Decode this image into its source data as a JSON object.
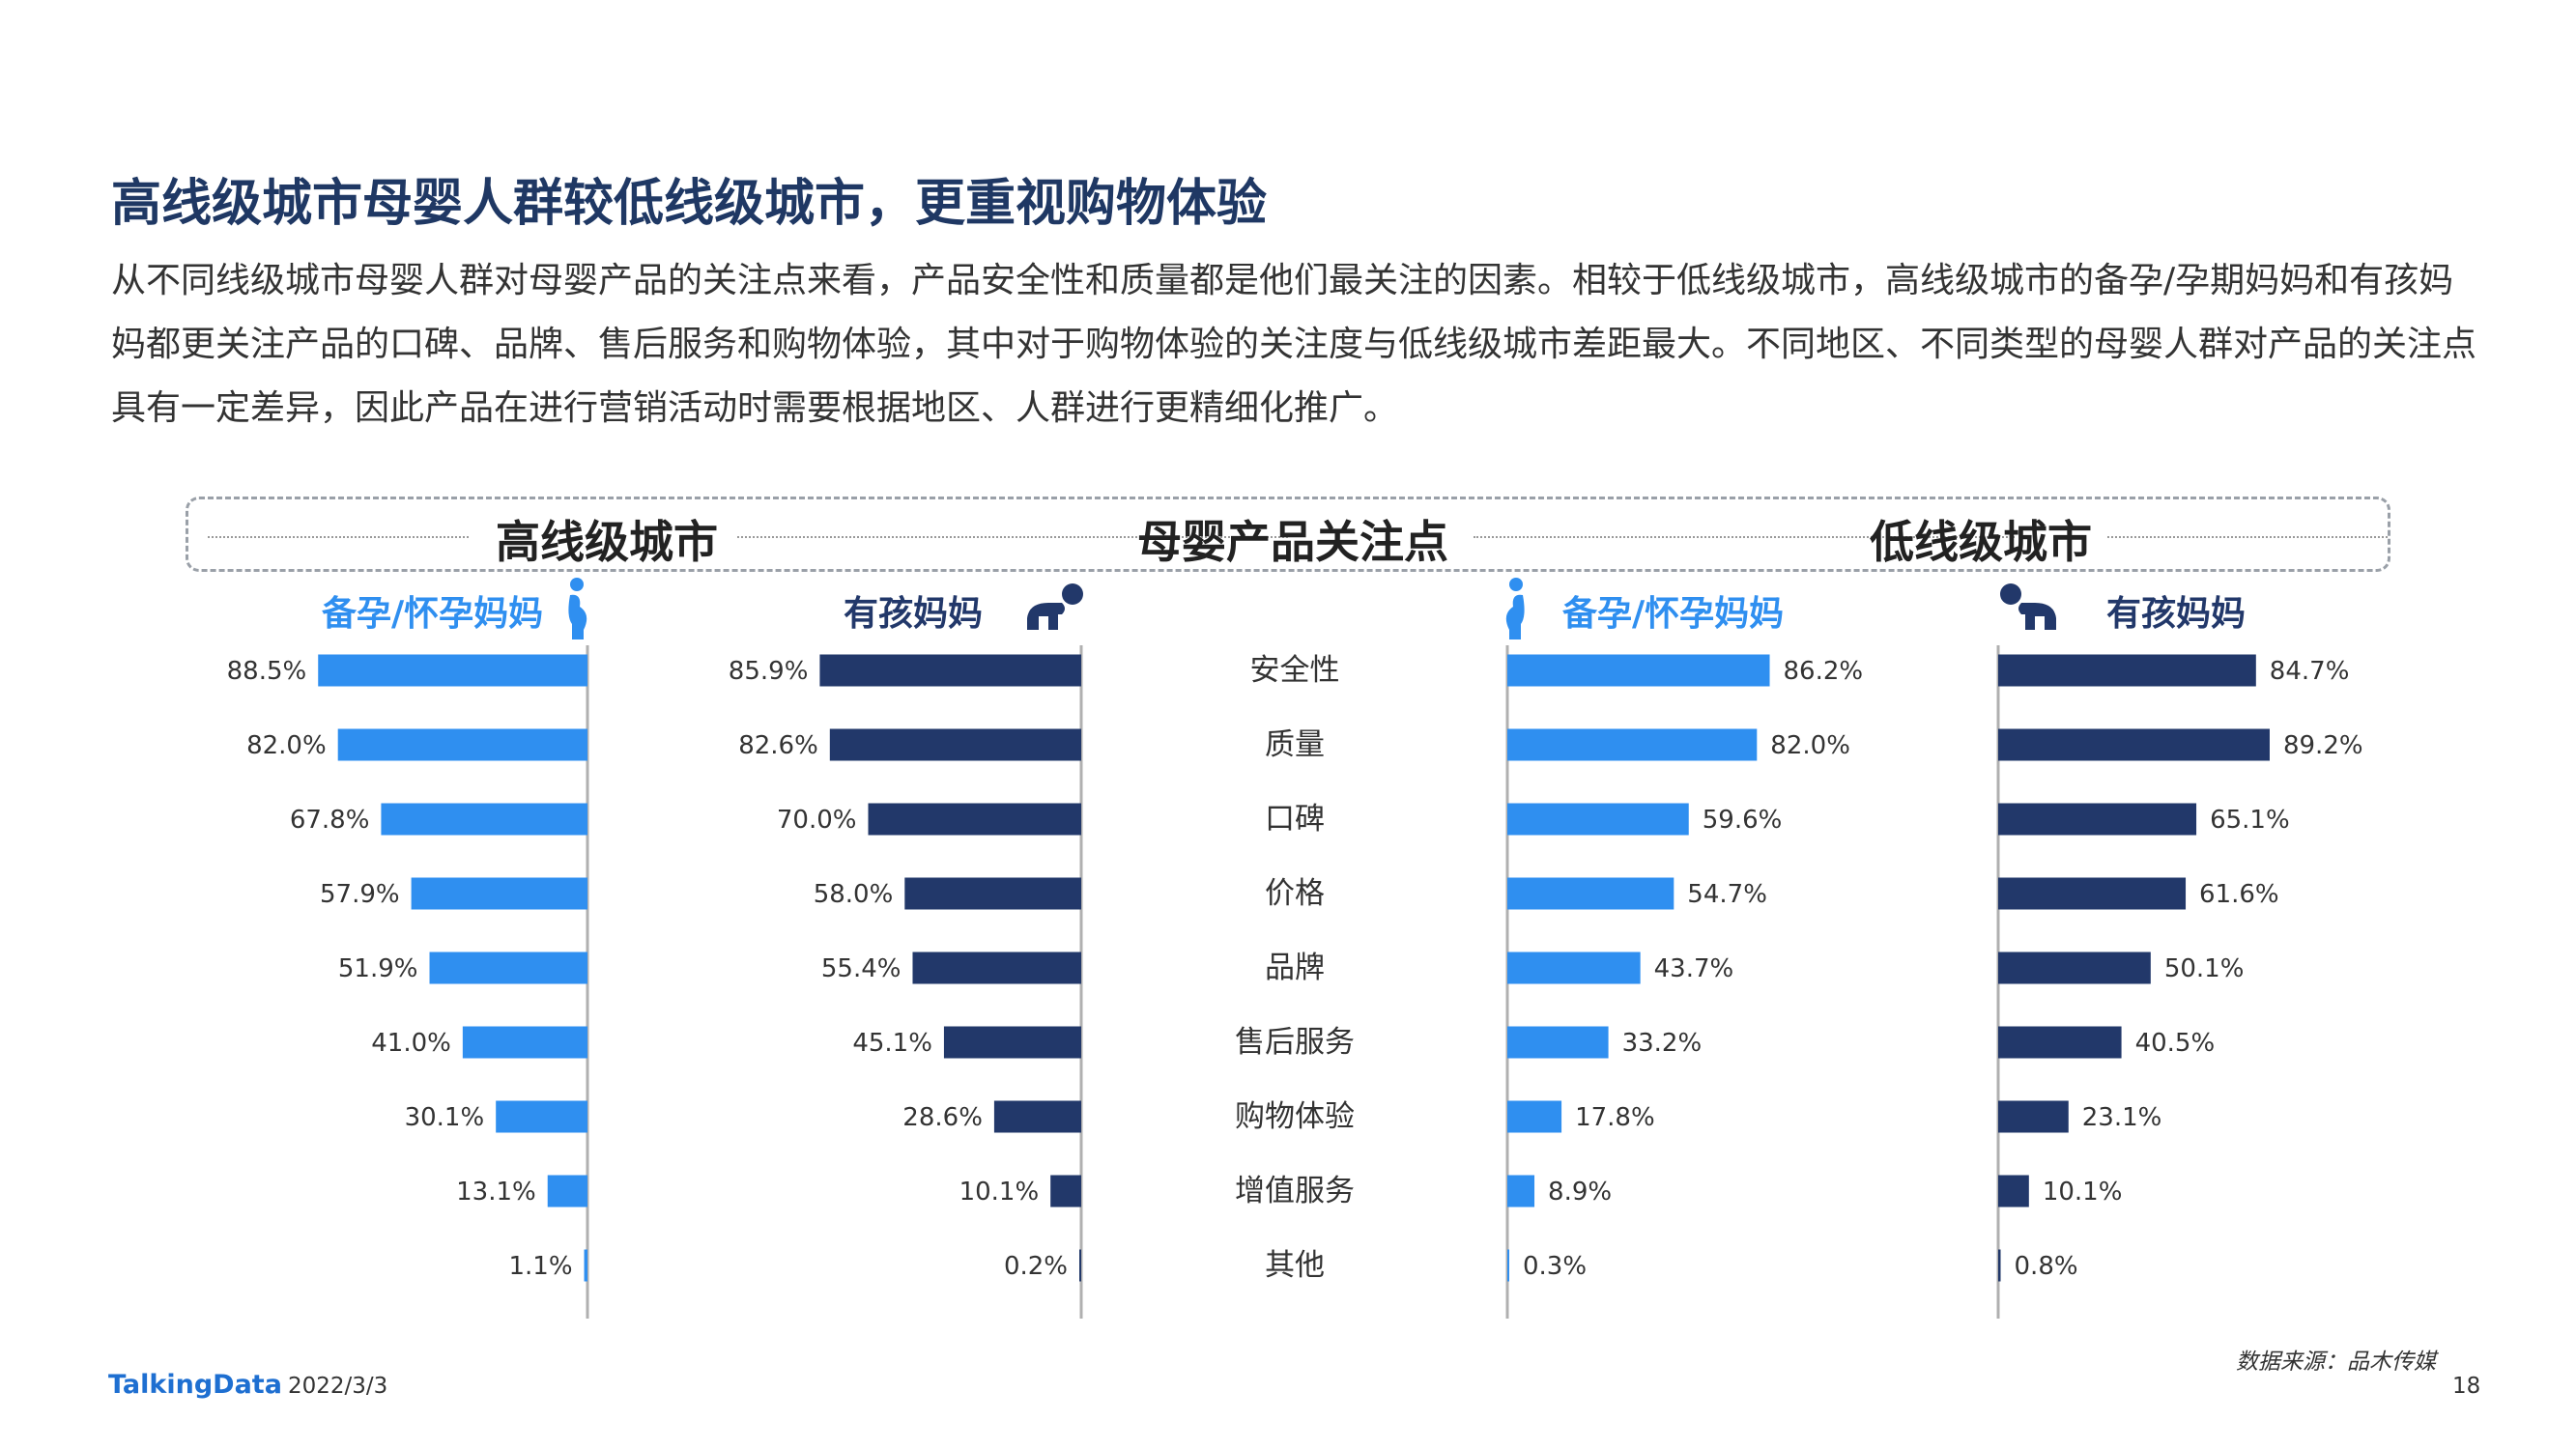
{
  "header": {
    "title": "高线级城市母婴人群较低线级城市，更重视购物体验",
    "description": "从不同线级城市母婴人群对母婴产品的关注点来看，产品安全性和质量都是他们最关注的因素。相较于低线级城市，高线级城市的备孕/孕期妈妈和有孩妈妈都更关注产品的口碑、品牌、售后服务和购物体验，其中对于购物体验的关注度与低线级城市差距最大。不同地区、不同类型的母婴人群对产品的关注点具有一定差异，因此产品在进行营销活动时需要根据地区、人群进行更精细化推广。"
  },
  "banner": {
    "left": "高线级城市",
    "center": "母婴产品关注点",
    "right": "低线级城市"
  },
  "groups": {
    "pregnant_label": "备孕/怀孕妈妈",
    "child_label": "有孩妈妈"
  },
  "colors": {
    "light_blue": "#2f8ff0",
    "navy": "#22386a",
    "axis": "#b0b0b0"
  },
  "icons": [
    "pregnant-woman-icon",
    "crawling-baby-icon"
  ],
  "chart_data": {
    "type": "bar",
    "categories": [
      "安全性",
      "质量",
      "口碑",
      "价格",
      "品牌",
      "售后服务",
      "购物体验",
      "增值服务",
      "其他"
    ],
    "unit": "%",
    "xlim": [
      0,
      100
    ],
    "series": [
      {
        "name": "高线级城市 备孕/怀孕妈妈",
        "side": "left",
        "color": "#2f8ff0",
        "values": [
          88.5,
          82.0,
          67.8,
          57.9,
          51.9,
          41.0,
          30.1,
          13.1,
          1.1
        ]
      },
      {
        "name": "高线级城市 有孩妈妈",
        "side": "left",
        "color": "#22386a",
        "values": [
          85.9,
          82.6,
          70.0,
          58.0,
          55.4,
          45.1,
          28.6,
          10.1,
          0.2
        ]
      },
      {
        "name": "低线级城市 备孕/怀孕妈妈",
        "side": "right",
        "color": "#2f8ff0",
        "values": [
          86.2,
          82.0,
          59.6,
          54.7,
          43.7,
          33.2,
          17.8,
          8.9,
          0.3
        ]
      },
      {
        "name": "低线级城市 有孩妈妈",
        "side": "right",
        "color": "#22386a",
        "values": [
          84.7,
          89.2,
          65.1,
          61.6,
          50.1,
          40.5,
          23.1,
          10.1,
          0.8
        ]
      }
    ]
  },
  "footer": {
    "logo": "TalkingData",
    "date": "2022/3/3",
    "source": "数据来源：品木传媒",
    "page": "18"
  }
}
